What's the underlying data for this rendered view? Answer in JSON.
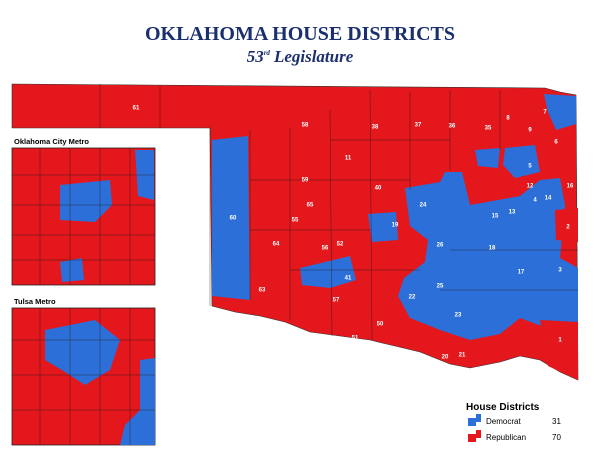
{
  "header": {
    "title": "OKLAHOMA HOUSE DISTRICTS",
    "subtitle_number": "53",
    "subtitle_suffix": "rd",
    "subtitle_text": "Legislature"
  },
  "insets": [
    {
      "title": "Oklahoma City Metro"
    },
    {
      "title": "Tulsa Metro"
    }
  ],
  "legend": {
    "title": "House Districts",
    "items": [
      {
        "label": "Democrat",
        "count": 31
      },
      {
        "label": "Republican",
        "count": 70
      }
    ]
  },
  "district_labels": [
    "61",
    "58",
    "38",
    "37",
    "36",
    "35",
    "11",
    "59",
    "40",
    "60",
    "57",
    "55",
    "56",
    "41",
    "51",
    "50",
    "52",
    "63",
    "64",
    "65",
    "20",
    "21",
    "23",
    "22",
    "25",
    "26",
    "18",
    "17",
    "15",
    "13",
    "12",
    "14",
    "16",
    "19",
    "24",
    "9",
    "8",
    "7",
    "6",
    "5",
    "4",
    "3",
    "2",
    "1"
  ]
}
